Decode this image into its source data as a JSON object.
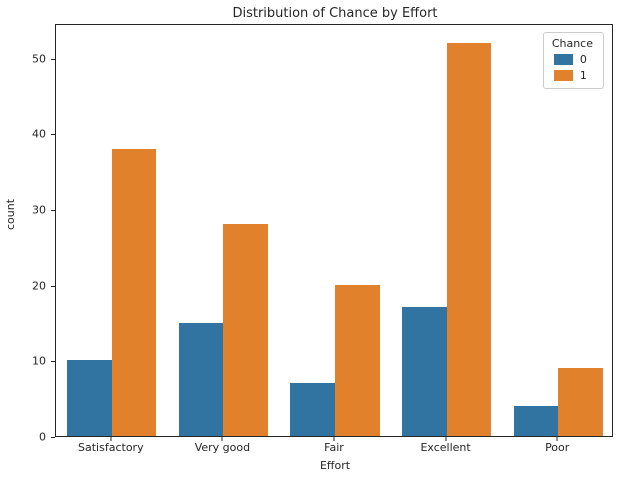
{
  "chart_data": {
    "type": "bar",
    "title": "Distribution of Chance by Effort",
    "xlabel": "Effort",
    "ylabel": "count",
    "categories": [
      "Satisfactory",
      "Very good",
      "Fair",
      "Excellent",
      "Poor"
    ],
    "series": [
      {
        "name": "0",
        "color": "#3274a1",
        "values": [
          10,
          15,
          7,
          17,
          4
        ]
      },
      {
        "name": "1",
        "color": "#e1812c",
        "values": [
          38,
          28,
          20,
          52,
          9
        ]
      }
    ],
    "yticks": [
      0,
      10,
      20,
      30,
      40,
      50
    ],
    "ylim": [
      0,
      54.6
    ],
    "grid": false,
    "legend_title": "Chance",
    "legend_position": "upper right"
  }
}
